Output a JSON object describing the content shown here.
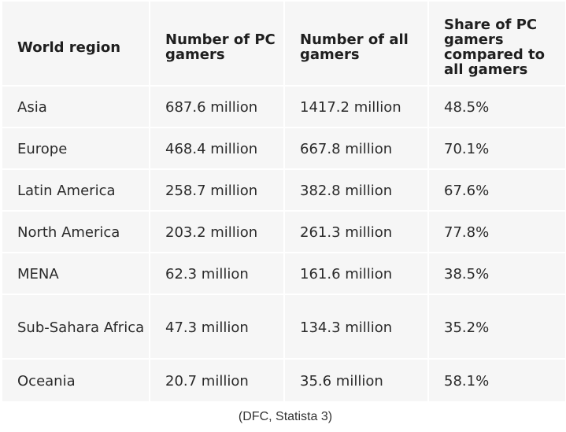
{
  "table": {
    "headers": [
      "World region",
      "Number of PC gamers",
      "Number of all gamers",
      "Share of PC gamers compared to all gamers"
    ],
    "rows": [
      [
        "Asia",
        "687.6 million",
        "1417.2 million",
        "48.5%"
      ],
      [
        "Europe",
        "468.4 million",
        "667.8 million",
        "70.1%"
      ],
      [
        "Latin America",
        "258.7 million",
        "382.8 million",
        "67.6%"
      ],
      [
        "North America",
        "203.2 million",
        "261.3 million",
        "77.8%"
      ],
      [
        "MENA",
        "62.3 million",
        "161.6 million",
        "38.5%"
      ],
      [
        "Sub-Sahara Africa",
        "47.3 million",
        "134.3 million",
        "35.2%"
      ],
      [
        "Oceania",
        "20.7 million",
        "35.6 million",
        "58.1%"
      ]
    ]
  },
  "source": "(DFC, Statista 3)"
}
